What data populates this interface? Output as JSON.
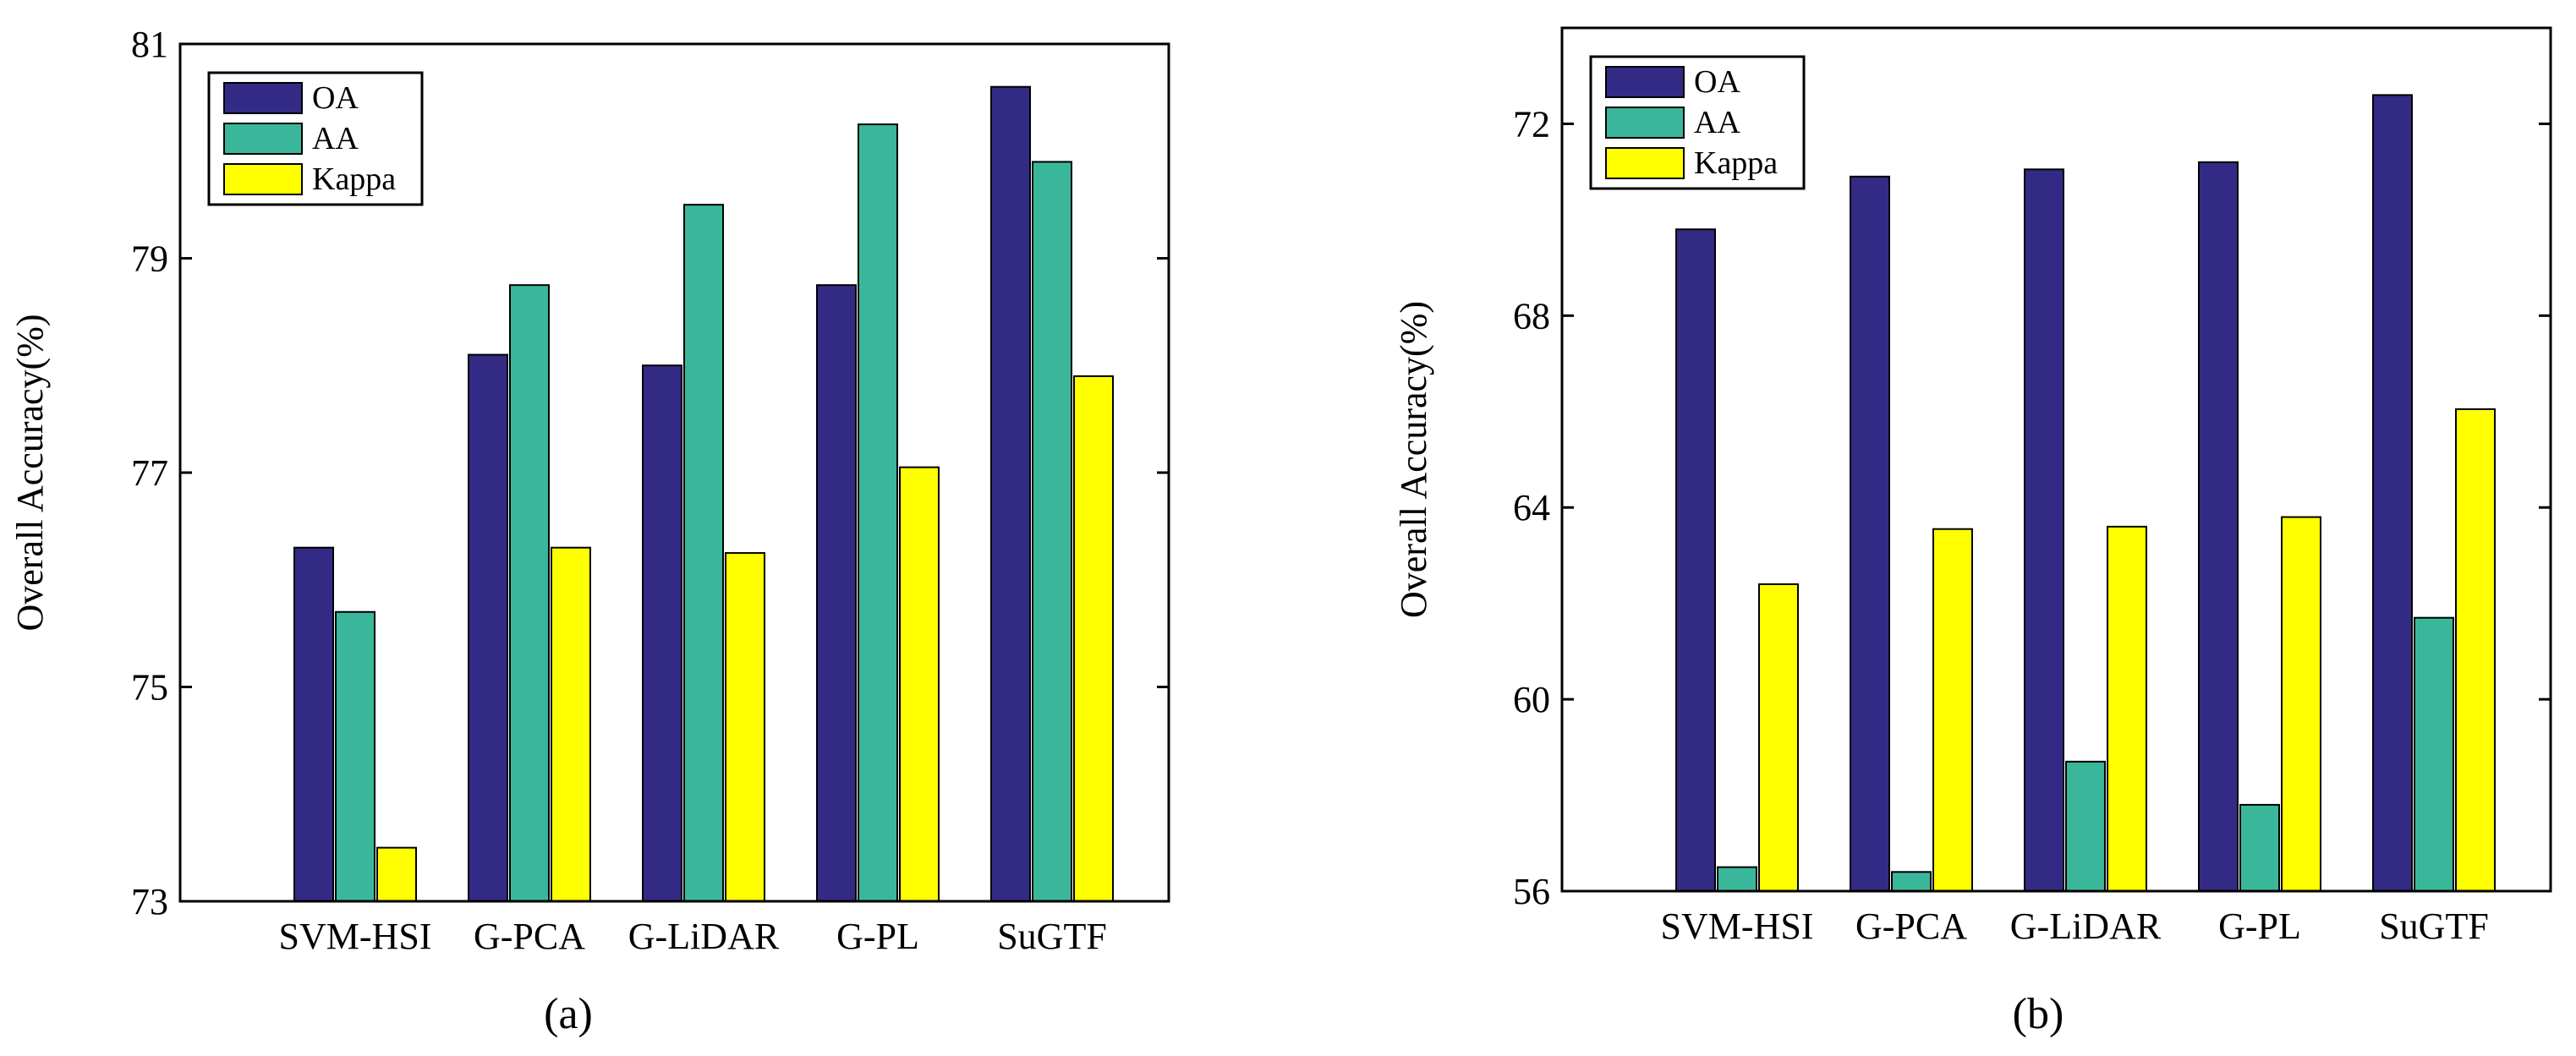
{
  "colors": {
    "OA": "#332a85",
    "AA": "#3ab79b",
    "Kappa": "#ffff00"
  },
  "chart_data": [
    {
      "type": "bar",
      "panel": "a",
      "caption": "(a)",
      "ylabel": "Overall  Accuracy(%)",
      "xlabel": "",
      "ylim": [
        73,
        81
      ],
      "yticks": [
        73,
        75,
        77,
        79,
        81
      ],
      "categories": [
        "SVM-HSI",
        "G-PCA",
        "G-LiDAR",
        "G-PL",
        "SuGTF"
      ],
      "legend": {
        "position": "top-left",
        "entries": [
          "OA",
          "AA",
          "Kappa"
        ]
      },
      "series": [
        {
          "name": "OA",
          "values": [
            76.3,
            78.1,
            78.0,
            78.75,
            80.6
          ]
        },
        {
          "name": "AA",
          "values": [
            75.7,
            78.75,
            79.5,
            80.25,
            79.9
          ]
        },
        {
          "name": "Kappa",
          "values": [
            73.5,
            76.3,
            76.25,
            77.05,
            77.9
          ]
        }
      ]
    },
    {
      "type": "bar",
      "panel": "b",
      "caption": "(b)",
      "ylabel": "Overall  Accuracy(%)",
      "xlabel": "",
      "ylim": [
        56,
        74
      ],
      "yticks": [
        56,
        60,
        64,
        68,
        72
      ],
      "categories": [
        "SVM-HSI",
        "G-PCA",
        "G-LiDAR",
        "G-PL",
        "SuGTF"
      ],
      "legend": {
        "position": "top-left",
        "entries": [
          "OA",
          "AA",
          "Kappa"
        ]
      },
      "series": [
        {
          "name": "OA",
          "values": [
            69.8,
            70.9,
            71.05,
            71.2,
            72.6
          ]
        },
        {
          "name": "AA",
          "values": [
            56.5,
            56.4,
            58.7,
            57.8,
            61.7
          ]
        },
        {
          "name": "Kappa",
          "values": [
            62.4,
            63.55,
            63.6,
            63.8,
            66.05
          ]
        }
      ]
    }
  ]
}
